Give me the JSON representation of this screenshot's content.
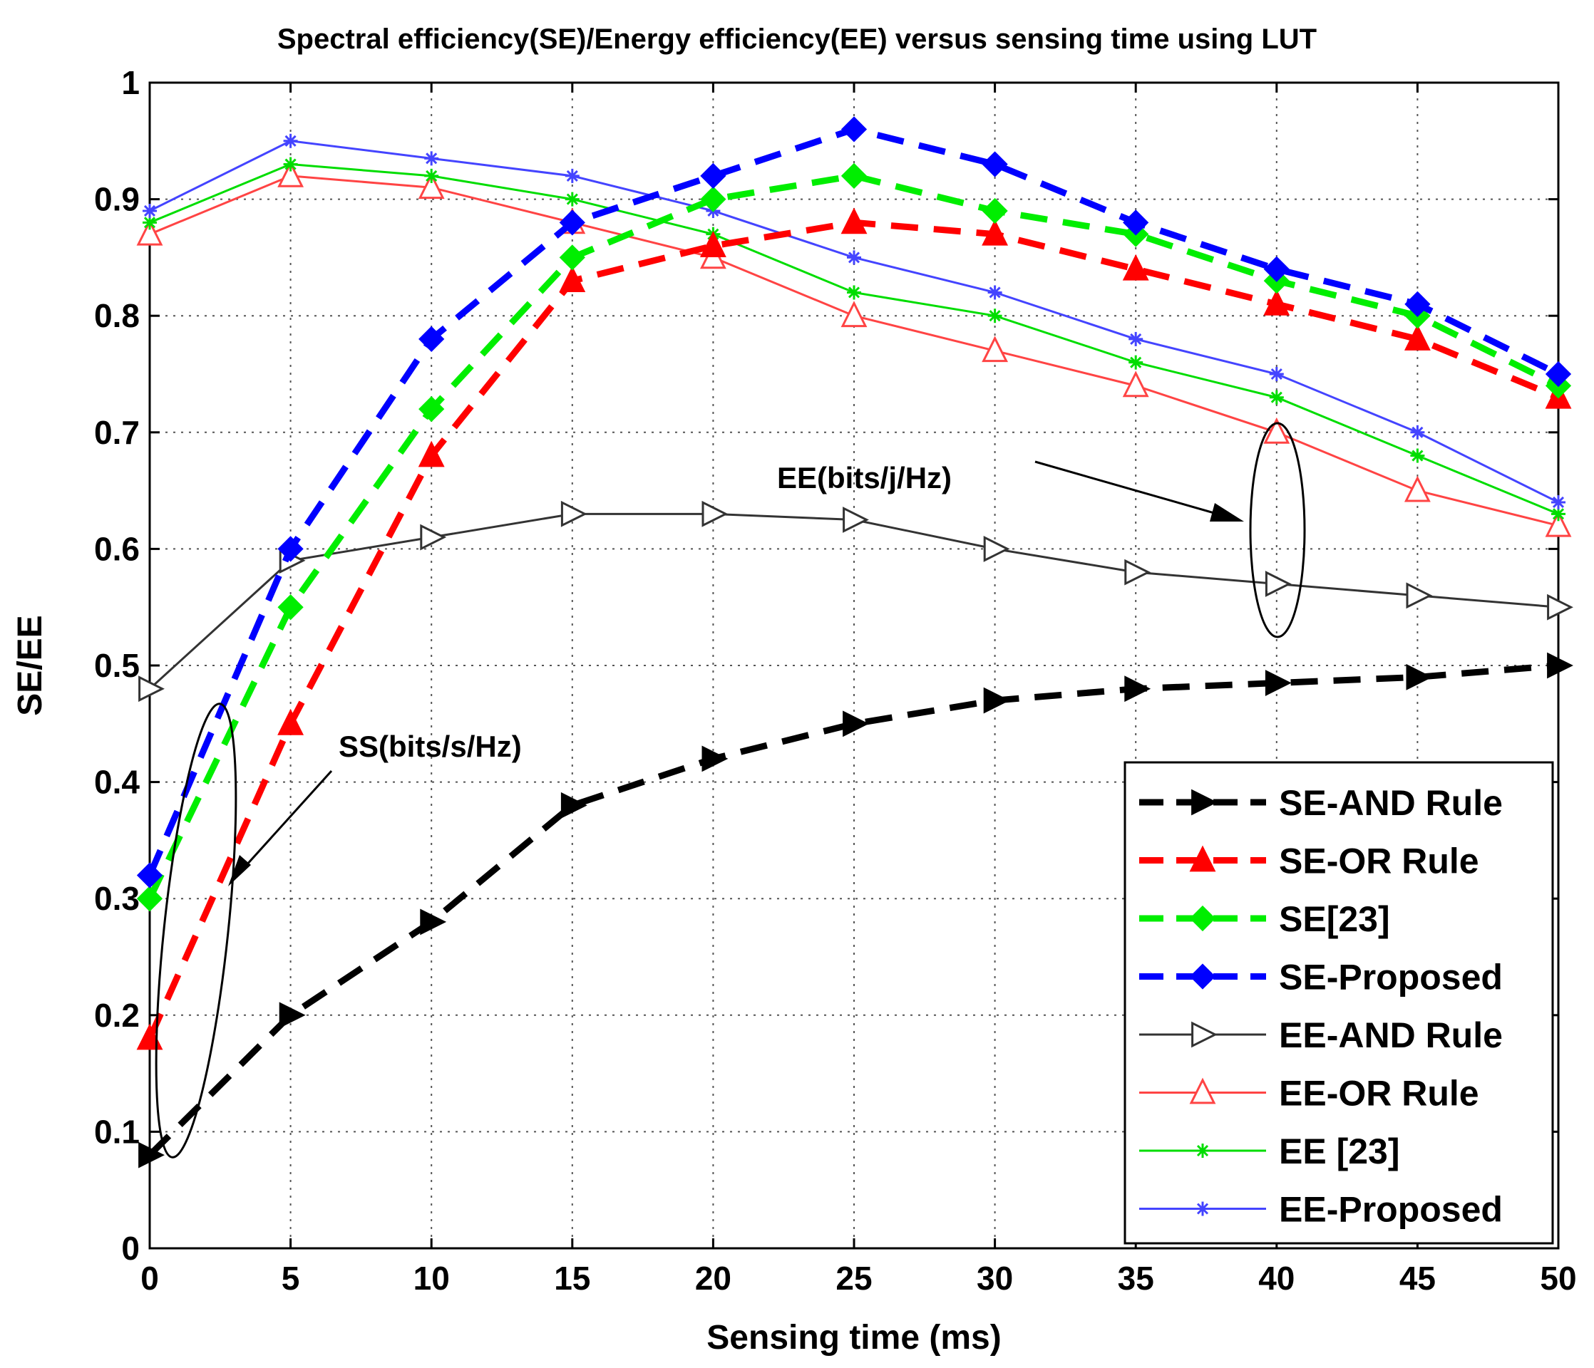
{
  "chart_data": {
    "type": "line",
    "title": "Spectral efficiency(SE)/Energy efficiency(EE) versus sensing time using LUT",
    "xlabel": "Sensing time (ms)",
    "ylabel": "SE/EE",
    "xlim": [
      0,
      50
    ],
    "ylim": [
      0,
      1
    ],
    "grid": true,
    "xticks": [
      0,
      5,
      10,
      15,
      20,
      25,
      30,
      35,
      40,
      45,
      50
    ],
    "yticks": [
      0,
      0.1,
      0.2,
      0.3,
      0.4,
      0.5,
      0.6,
      0.7,
      0.8,
      0.9,
      1
    ],
    "xtick_labels": [
      "0",
      "5",
      "10",
      "15",
      "20",
      "25",
      "30",
      "35",
      "40",
      "45",
      "50"
    ],
    "ytick_labels": [
      "0",
      "0.1",
      "0.2",
      "0.3",
      "0.4",
      "0.5",
      "0.6",
      "0.7",
      "0.8",
      "0.9",
      "1"
    ],
    "x": [
      0,
      5,
      10,
      15,
      20,
      25,
      30,
      35,
      40,
      45,
      50
    ],
    "legend_position": "bottom-right",
    "series": [
      {
        "name": "SE-AND Rule",
        "color": "#000000",
        "style": "dashed",
        "marker": "triangle-right-filled",
        "values": [
          0.08,
          0.2,
          0.28,
          0.38,
          0.42,
          0.45,
          0.47,
          0.48,
          0.485,
          0.49,
          0.5
        ]
      },
      {
        "name": "SE-OR Rule",
        "color": "#ff0000",
        "style": "dashed",
        "marker": "triangle-up-filled",
        "values": [
          0.18,
          0.45,
          0.68,
          0.83,
          0.86,
          0.88,
          0.87,
          0.84,
          0.81,
          0.78,
          0.73
        ]
      },
      {
        "name": "SE[23]",
        "color": "#00ee00",
        "style": "dashed",
        "marker": "diamond-filled",
        "values": [
          0.3,
          0.55,
          0.72,
          0.85,
          0.9,
          0.92,
          0.89,
          0.87,
          0.83,
          0.8,
          0.74
        ]
      },
      {
        "name": "SE-Proposed",
        "color": "#0000ff",
        "style": "dashed",
        "marker": "diamond-filled",
        "values": [
          0.32,
          0.6,
          0.78,
          0.88,
          0.92,
          0.96,
          0.93,
          0.88,
          0.84,
          0.81,
          0.75
        ]
      },
      {
        "name": "EE-AND Rule",
        "color": "#333333",
        "style": "solid",
        "marker": "triangle-right-open",
        "values": [
          0.48,
          0.59,
          0.61,
          0.63,
          0.63,
          0.625,
          0.6,
          0.58,
          0.57,
          0.56,
          0.55
        ]
      },
      {
        "name": "EE-OR Rule",
        "color": "#ff4444",
        "style": "solid",
        "marker": "triangle-up-open",
        "values": [
          0.87,
          0.92,
          0.91,
          0.88,
          0.85,
          0.8,
          0.77,
          0.74,
          0.7,
          0.65,
          0.62
        ]
      },
      {
        "name": "EE [23]",
        "color": "#00dd00",
        "style": "solid",
        "marker": "star",
        "values": [
          0.88,
          0.93,
          0.92,
          0.9,
          0.87,
          0.82,
          0.8,
          0.76,
          0.73,
          0.68,
          0.63
        ]
      },
      {
        "name": "EE-Proposed",
        "color": "#4444ff",
        "style": "solid",
        "marker": "star",
        "values": [
          0.89,
          0.95,
          0.935,
          0.92,
          0.89,
          0.85,
          0.82,
          0.78,
          0.75,
          0.7,
          0.64
        ]
      }
    ],
    "annotations": [
      {
        "text": "EE(bits/j/Hz)",
        "points_to": {
          "x": 39.5,
          "y": 0.6
        }
      },
      {
        "text": "SS(bits/s/Hz)",
        "points_to": {
          "x": 2.8,
          "y": 0.3
        }
      }
    ]
  },
  "colors": {
    "background": "#ffffff",
    "grid": "#555555",
    "axes": "#000000"
  }
}
